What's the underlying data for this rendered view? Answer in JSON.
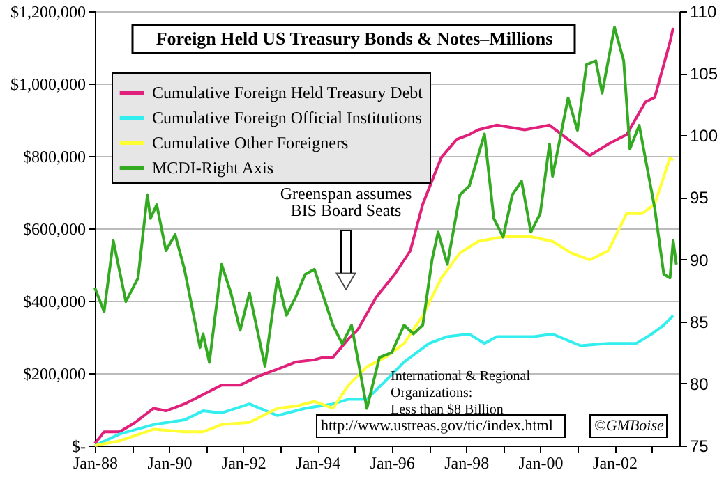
{
  "chart_data": {
    "type": "line",
    "title": "Foreign Held US Treasury Bonds & Notes–Millions",
    "xlim": [
      "1988-01",
      "2003-10"
    ],
    "xticks": [
      {
        "value": "1988-01",
        "label": "Jan-88"
      },
      {
        "value": "1989-01",
        "label": null
      },
      {
        "value": "1990-01",
        "label": "Jan-90"
      },
      {
        "value": "1991-01",
        "label": null
      },
      {
        "value": "1992-01",
        "label": "Jan-92"
      },
      {
        "value": "1993-01",
        "label": null
      },
      {
        "value": "1994-01",
        "label": "Jan-94"
      },
      {
        "value": "1995-01",
        "label": null
      },
      {
        "value": "1996-01",
        "label": "Jan-96"
      },
      {
        "value": "1997-01",
        "label": null
      },
      {
        "value": "1998-01",
        "label": "Jan-98"
      },
      {
        "value": "1999-01",
        "label": null
      },
      {
        "value": "2000-01",
        "label": "Jan-00"
      },
      {
        "value": "2001-01",
        "label": null
      },
      {
        "value": "2002-01",
        "label": "Jan-02"
      },
      {
        "value": "2003-01",
        "label": null
      }
    ],
    "ylim": [
      0,
      1200000
    ],
    "yticks": [
      {
        "value": 0,
        "label": "$-"
      },
      {
        "value": 200000,
        "label": "$200,000"
      },
      {
        "value": 400000,
        "label": "$400,000"
      },
      {
        "value": 600000,
        "label": "$600,000"
      },
      {
        "value": 800000,
        "label": "$800,000"
      },
      {
        "value": 1000000,
        "label": "$1,000,000"
      },
      {
        "value": 1200000,
        "label": "$1,200,000"
      }
    ],
    "y2lim": [
      75,
      110
    ],
    "y2ticks": [
      75,
      80,
      85,
      90,
      95,
      100,
      105,
      110
    ],
    "grid": "y",
    "legend": "top left",
    "series": [
      {
        "name": "Cumulative Foreign Held Treasury Debt",
        "color": "#e0207a",
        "x": [
          "1988-01",
          "1988-04",
          "1988-09",
          "1989-02",
          "1989-08",
          "1989-12",
          "1990-06",
          "1990-12",
          "1991-06",
          "1991-12",
          "1992-06",
          "1992-12",
          "1993-06",
          "1993-12",
          "1994-03",
          "1994-06",
          "1994-11",
          "1995-02",
          "1995-08",
          "1996-02",
          "1996-07",
          "1996-11",
          "1997-05",
          "1997-10",
          "1998-02",
          "1998-05",
          "1998-11",
          "1999-08",
          "2000-04",
          "2000-10",
          "2001-05",
          "2001-11",
          "2002-05",
          "2002-11",
          "2003-02",
          "2003-07",
          "2003-08"
        ],
        "values": [
          6000,
          38000,
          38000,
          64000,
          103000,
          96000,
          115000,
          141000,
          167000,
          167000,
          192000,
          211000,
          231000,
          237000,
          244000,
          244000,
          295000,
          320000,
          410000,
          474000,
          538000,
          667000,
          795000,
          846000,
          859000,
          872000,
          885000,
          872000,
          885000,
          846000,
          801000,
          833000,
          859000,
          949000,
          962000,
          1115000,
          1154000
        ]
      },
      {
        "name": "Cumulative Foreign Official Institutions",
        "color": "#33eeee",
        "x": [
          "1988-01",
          "1988-09",
          "1989-08",
          "1990-06",
          "1990-12",
          "1991-06",
          "1992-03",
          "1992-12",
          "1993-09",
          "1994-06",
          "1994-11",
          "1995-05",
          "1995-11",
          "1996-05",
          "1997-01",
          "1997-07",
          "1998-02",
          "1998-07",
          "1998-11",
          "1999-11",
          "2000-05",
          "2001-02",
          "2001-11",
          "2002-08",
          "2003-01",
          "2003-05",
          "2003-08"
        ],
        "values": [
          0,
          32000,
          58000,
          71000,
          96000,
          90000,
          115000,
          83000,
          103000,
          115000,
          128000,
          128000,
          179000,
          231000,
          282000,
          301000,
          308000,
          282000,
          301000,
          301000,
          308000,
          276000,
          282000,
          282000,
          308000,
          333000,
          359000
        ]
      },
      {
        "name": "Cumulative Other Foreigners",
        "color": "#ffff33",
        "x": [
          "1988-01",
          "1988-09",
          "1989-08",
          "1990-06",
          "1990-12",
          "1991-06",
          "1992-03",
          "1992-12",
          "1993-06",
          "1993-12",
          "1994-06",
          "1994-11",
          "1995-05",
          "1995-11",
          "1996-05",
          "1996-11",
          "1997-05",
          "1997-11",
          "1998-05",
          "1999-01",
          "1999-10",
          "2000-05",
          "2000-11",
          "2001-05",
          "2001-11",
          "2002-05",
          "2002-10",
          "2003-02",
          "2003-07",
          "2003-08"
        ],
        "values": [
          0,
          13000,
          45000,
          38000,
          38000,
          58000,
          64000,
          103000,
          109000,
          122000,
          103000,
          167000,
          218000,
          244000,
          282000,
          359000,
          462000,
          532000,
          564000,
          577000,
          577000,
          564000,
          532000,
          513000,
          538000,
          641000,
          641000,
          667000,
          795000,
          788000
        ]
      },
      {
        "name": "MCDI-Right Axis",
        "color": "#33aa22",
        "axis": "y2",
        "x": [
          "1988-01",
          "1988-04",
          "1988-07",
          "1988-11",
          "1989-03",
          "1989-06",
          "1989-07",
          "1989-09",
          "1989-12",
          "1990-03",
          "1990-06",
          "1990-11",
          "1990-12",
          "1991-02",
          "1991-06",
          "1991-09",
          "1991-12",
          "1992-03",
          "1992-08",
          "1992-12",
          "1993-03",
          "1993-06",
          "1993-09",
          "1993-12",
          "1994-06",
          "1994-09",
          "1994-12",
          "1995-05",
          "1995-09",
          "1996-01",
          "1996-05",
          "1996-08",
          "1996-11",
          "1997-02",
          "1997-04",
          "1997-07",
          "1997-11",
          "1998-02",
          "1998-07",
          "1998-10",
          "1999-01",
          "1999-04",
          "1999-07",
          "1999-10",
          "2000-01",
          "2000-04",
          "2000-05",
          "2000-10",
          "2001-01",
          "2001-04",
          "2001-07",
          "2001-09",
          "2002-01",
          "2002-04",
          "2002-06",
          "2002-09",
          "2003-02",
          "2003-05",
          "2003-07",
          "2003-08",
          "2003-09"
        ],
        "values": [
          87.7,
          85.8,
          91.5,
          86.6,
          88.5,
          95.2,
          93.3,
          94.4,
          90.7,
          92.0,
          89.2,
          82.9,
          84.0,
          81.7,
          89.6,
          87.3,
          84.3,
          87.3,
          81.4,
          88.5,
          85.5,
          87.0,
          88.8,
          89.2,
          84.7,
          83.2,
          84.7,
          78.0,
          82.1,
          82.5,
          84.7,
          84.0,
          84.7,
          90.0,
          92.2,
          89.6,
          95.2,
          95.9,
          100.1,
          93.3,
          91.8,
          95.2,
          96.3,
          92.2,
          93.7,
          99.3,
          96.7,
          103.0,
          100.4,
          105.7,
          106.0,
          103.4,
          108.7,
          106.0,
          98.9,
          100.8,
          94.1,
          88.8,
          88.5,
          91.5,
          89.6
        ]
      }
    ],
    "annotations": [
      "Greenspan assumes BIS Board Seats",
      "International & Regional Organizations: Less than $8 Billion",
      "http://www.ustreas.gov/tic/index.html",
      "©GMBoise"
    ]
  }
}
